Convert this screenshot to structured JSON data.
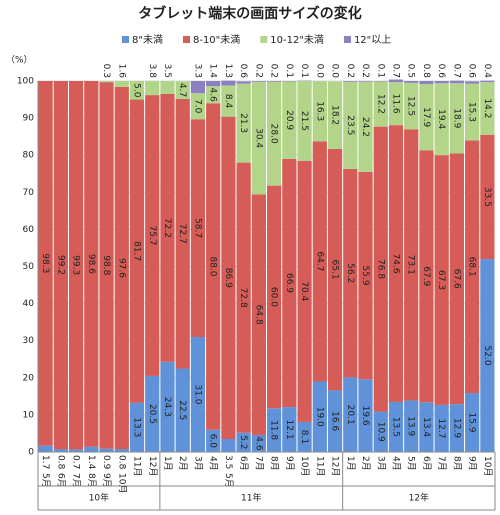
{
  "chart_data": {
    "type": "stacked_bar",
    "title": "タブレット端末の画面サイズの変化",
    "y_unit": "（%）",
    "groups": [
      {
        "label": "10年",
        "categories": [
          "5月",
          "6月",
          "7月",
          "8月",
          "9月",
          "10月",
          "11月",
          "12月"
        ]
      },
      {
        "label": "11年",
        "categories": [
          "1月",
          "2月",
          "3月",
          "4月",
          "5月",
          "6月",
          "7月",
          "8月",
          "9月",
          "10月",
          "11月",
          "12月"
        ]
      },
      {
        "label": "12年",
        "categories": [
          "1月",
          "2月",
          "3月",
          "4月",
          "5月",
          "6月",
          "7月",
          "8月",
          "9月",
          "10月"
        ]
      }
    ],
    "series": [
      {
        "name": "8\"未満",
        "color": "#5f92d8",
        "values": [
          1.7,
          0.8,
          0.7,
          1.4,
          0.9,
          0.8,
          13.3,
          20.5,
          24.3,
          22.5,
          31.0,
          6.0,
          3.5,
          5.2,
          4.6,
          11.8,
          12.1,
          8.1,
          19.0,
          16.6,
          20.1,
          19.6,
          10.9,
          13.5,
          13.9,
          13.4,
          12.7,
          12.9,
          15.9,
          52.0
        ],
        "value_labels": [
          "1.7",
          "0.8",
          "0.7",
          "1.4",
          "0.9",
          "0.8",
          "13.3",
          "20.5",
          "24.3",
          "22.5",
          "31.0",
          "6.0",
          "3.5",
          "5.2",
          "4.6",
          "11.8",
          "12.1",
          "8.1",
          "19.0",
          "16.6",
          "20.1",
          "19.6",
          "10.9",
          "13.5",
          "13.9",
          "13.4",
          "12.7",
          "12.9",
          "15.9",
          "52.0"
        ]
      },
      {
        "name": "8-10\"未満",
        "color": "#d65c57",
        "values": [
          98.3,
          99.2,
          99.3,
          98.6,
          98.8,
          97.6,
          81.7,
          75.7,
          72.2,
          72.7,
          58.7,
          88.0,
          86.9,
          72.8,
          64.8,
          60.0,
          66.9,
          70.4,
          64.7,
          65.1,
          56.2,
          55.9,
          76.8,
          74.6,
          73.1,
          67.9,
          67.3,
          67.6,
          68.1,
          33.5
        ],
        "value_labels": [
          "98.3",
          "99.2",
          "99.3",
          "98.6",
          "98.8",
          "97.6",
          "81.7",
          "75.7",
          "72.2",
          "72.7",
          "58.7",
          "88.0",
          "86.9",
          "72.8",
          "64.8",
          "60.0",
          "66.9",
          "70.4",
          "64.7",
          "65.1",
          "56.2",
          "55.9",
          "76.8",
          "74.6",
          "73.1",
          "67.9",
          "67.3",
          "67.6",
          "68.1",
          "33.5"
        ]
      },
      {
        "name": "10-12\"未満",
        "color": "#b3d58a",
        "values": [
          null,
          null,
          null,
          null,
          0.3,
          1.6,
          5.0,
          3.8,
          3.5,
          4.7,
          7.0,
          4.6,
          8.4,
          21.3,
          30.4,
          28.0,
          20.9,
          21.5,
          16.3,
          18.2,
          23.5,
          24.2,
          12.2,
          11.6,
          12.5,
          17.9,
          19.4,
          18.9,
          15.3,
          14.2
        ],
        "value_labels": [
          null,
          null,
          null,
          null,
          "0.3",
          "1.6",
          "5.0",
          "3.8",
          "3.5",
          "4.7",
          "7.0",
          "4.6",
          "8.4",
          "21.3",
          "30.4",
          "28.0",
          "20.9",
          "21.5",
          "16.3",
          "18.2",
          "23.5",
          "24.2",
          "12.2",
          "11.6",
          "12.5",
          "17.9",
          "19.4",
          "18.9",
          "15.3",
          "14.2"
        ]
      },
      {
        "name": "12\"以上",
        "color": "#8c7fc2",
        "values": [
          null,
          null,
          null,
          null,
          null,
          null,
          null,
          null,
          null,
          null,
          3.3,
          1.4,
          1.3,
          0.6,
          0.2,
          0.2,
          0.1,
          0.1,
          0.0,
          0.0,
          0.2,
          0.2,
          0.1,
          0.7,
          0.5,
          0.8,
          0.6,
          0.7,
          0.6,
          0.4
        ],
        "value_labels": [
          null,
          null,
          null,
          null,
          null,
          null,
          null,
          null,
          null,
          null,
          "3.3",
          "1.4",
          "1.3",
          "0.6",
          "0.2",
          "0.2",
          "0.1",
          "0.1",
          "0.0",
          "0.0",
          "0.2",
          "0.2",
          "0.1",
          "0.7",
          "0.5",
          "0.8",
          "0.6",
          "0.7",
          "0.6",
          "0.4"
        ]
      }
    ],
    "ylim": [
      0,
      100
    ],
    "yticks": [
      0,
      10,
      20,
      30,
      40,
      50,
      60,
      70,
      80,
      90,
      100
    ],
    "grid": true
  }
}
